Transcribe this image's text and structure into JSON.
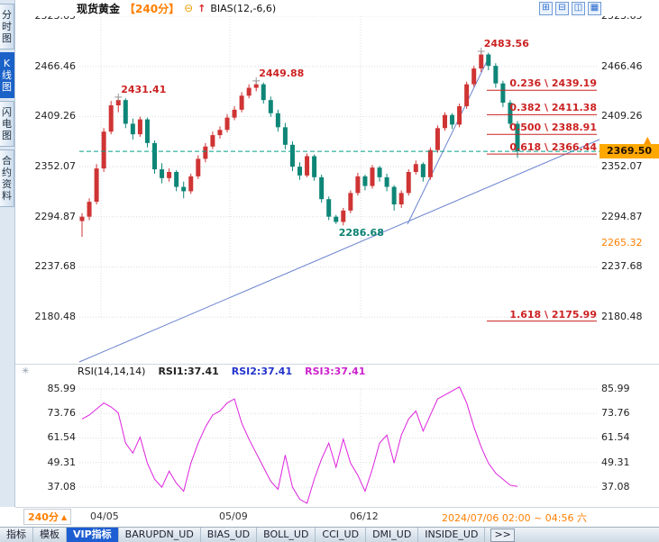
{
  "colors": {
    "up": "#cf3434",
    "down": "#0e8677",
    "rsi_line": "#dd22dd",
    "fib": "#cc2222",
    "trend": "#6b83cf",
    "teal": "#00a088",
    "accent_orange": "#ff7f00",
    "price_box_bg": "#ffa800",
    "active_tab_bg": "#1d5ed2",
    "grid": "#d8dde2"
  },
  "sidebar": {
    "tabs": [
      {
        "label": "分时图",
        "active": false
      },
      {
        "label": "K线图",
        "active": true
      },
      {
        "label": "闪电图",
        "active": false
      },
      {
        "label": "合约资料",
        "active": false
      }
    ]
  },
  "header": {
    "symbol": "现货黄金",
    "period": "【240分】",
    "minus_icon": "⊖",
    "up_arrow_icon": "↑",
    "indicator_label": "BIAS(12,-6,6)",
    "toolbar_icons": [
      {
        "name": "layout-grid-4-icon",
        "glyph": "⊞"
      },
      {
        "name": "layout-vertical-split-icon",
        "glyph": "⊟"
      },
      {
        "name": "layout-horizontal-split-icon",
        "glyph": "◫"
      },
      {
        "name": "layout-grid-9-icon",
        "glyph": "▦"
      }
    ]
  },
  "main_chart": {
    "y_labels_left": [
      "2523.65",
      "2466.46",
      "2409.26",
      "2352.07",
      "2294.87",
      "2237.68",
      "2180.48"
    ],
    "y_labels_right": [
      {
        "text": "2523.65"
      },
      {
        "text": "2466.46"
      },
      {
        "text": "2409.26"
      },
      {
        "text": "2352.07"
      },
      {
        "text": "2294.87"
      },
      {
        "text": "2265.32",
        "accent": true
      },
      {
        "text": "2237.68"
      },
      {
        "text": "2180.48"
      }
    ],
    "current_price": "2369.50",
    "price_marker": "▲",
    "fib_levels": [
      {
        "label": "0.236 \\ 2439.19",
        "price": 2439.19
      },
      {
        "label": "0.382 \\ 2411.38",
        "price": 2411.38
      },
      {
        "label": "0.500 \\ 2388.91",
        "price": 2388.91
      },
      {
        "label": "0.618 \\ 2366.44",
        "price": 2366.44
      },
      {
        "label": "1.618 \\ 2175.99",
        "price": 2175.99
      }
    ],
    "annotations": [
      {
        "text": "2431.41",
        "candle": 6,
        "kind": "peak"
      },
      {
        "text": "2449.88",
        "candle": 25,
        "kind": "peak"
      },
      {
        "text": "2483.56",
        "candle": 56,
        "kind": "peak"
      },
      {
        "text": "2286.68",
        "candle": 36,
        "kind": "trough"
      }
    ],
    "trend_lines": [
      [
        88,
        402,
        665,
        155
      ],
      [
        452,
        249,
        543,
        62
      ]
    ]
  },
  "rsi_panel": {
    "settings_icon": "✳",
    "title": "RSI(14,14,14)",
    "values": [
      {
        "label": "RSI1:37.41",
        "color": "#222222"
      },
      {
        "label": "RSI2:37.41",
        "color": "#2233cc"
      },
      {
        "label": "RSI3:37.41",
        "color": "#cc22cc"
      }
    ],
    "y_labels": [
      "85.99",
      "73.76",
      "61.54",
      "49.31",
      "37.08"
    ]
  },
  "time_axis": {
    "period_label": "240分",
    "period_arrow": "▲",
    "dates": [
      {
        "text": "04/05",
        "x": 100,
        "grid_x": 112
      },
      {
        "text": "05/09",
        "x": 243,
        "grid_x": 255
      },
      {
        "text": "06/12",
        "x": 388,
        "grid_x": 400
      }
    ],
    "range_text": "2024/07/06 02:00 ~ 04:56 六"
  },
  "bottom_tabs": [
    {
      "label": "指标"
    },
    {
      "label": "模板"
    },
    {
      "label": "VIP指标",
      "active": true
    },
    {
      "label": "BARUPDN_UD"
    },
    {
      "label": "BIAS_UD"
    },
    {
      "label": "BOLL_UD"
    },
    {
      "label": "CCI_UD"
    },
    {
      "label": "DMI_UD"
    },
    {
      "label": "INSIDE_UD"
    },
    {
      "label": ">>",
      "more": true
    }
  ],
  "chart_data": [
    {
      "type": "candlestick",
      "title": "现货黄金 240分",
      "ylim": [
        2180.48,
        2523.65
      ],
      "ohlc": [
        [
          2290,
          2299,
          2272,
          2295
        ],
        [
          2295,
          2316,
          2291,
          2312
        ],
        [
          2312,
          2355,
          2309,
          2350
        ],
        [
          2350,
          2396,
          2346,
          2392
        ],
        [
          2392,
          2427,
          2389,
          2422
        ],
        [
          2422,
          2431.4,
          2414,
          2428
        ],
        [
          2428,
          2430,
          2396,
          2401
        ],
        [
          2401,
          2407,
          2383,
          2389
        ],
        [
          2389,
          2409,
          2386,
          2406
        ],
        [
          2406,
          2408,
          2374,
          2379
        ],
        [
          2379,
          2382,
          2344,
          2349
        ],
        [
          2349,
          2356,
          2333,
          2339
        ],
        [
          2339,
          2350,
          2335,
          2346
        ],
        [
          2346,
          2348,
          2324,
          2329
        ],
        [
          2329,
          2335,
          2316,
          2324
        ],
        [
          2324,
          2344,
          2321,
          2341
        ],
        [
          2341,
          2365,
          2338,
          2361
        ],
        [
          2361,
          2379,
          2357,
          2375
        ],
        [
          2375,
          2392,
          2372,
          2388
        ],
        [
          2388,
          2398,
          2384,
          2394
        ],
        [
          2394,
          2412,
          2391,
          2408
        ],
        [
          2408,
          2421,
          2405,
          2417
        ],
        [
          2417,
          2437,
          2414,
          2433
        ],
        [
          2433,
          2446,
          2430,
          2442
        ],
        [
          2442,
          2449.9,
          2438,
          2446
        ],
        [
          2446,
          2448,
          2424,
          2428
        ],
        [
          2428,
          2432,
          2409,
          2413
        ],
        [
          2413,
          2417,
          2392,
          2397
        ],
        [
          2397,
          2402,
          2372,
          2377
        ],
        [
          2377,
          2381,
          2347,
          2352
        ],
        [
          2352,
          2357,
          2337,
          2342
        ],
        [
          2342,
          2367,
          2340,
          2364
        ],
        [
          2364,
          2366,
          2336,
          2340
        ],
        [
          2340,
          2343,
          2311,
          2315
        ],
        [
          2315,
          2318,
          2291,
          2295
        ],
        [
          2295,
          2297,
          2286.7,
          2289
        ],
        [
          2289,
          2305,
          2285,
          2302
        ],
        [
          2302,
          2325,
          2299,
          2322
        ],
        [
          2322,
          2345,
          2319,
          2341
        ],
        [
          2341,
          2343,
          2325,
          2330
        ],
        [
          2330,
          2354,
          2327,
          2351
        ],
        [
          2351,
          2353,
          2335,
          2340
        ],
        [
          2340,
          2344,
          2324,
          2329
        ],
        [
          2329,
          2331,
          2302,
          2309
        ],
        [
          2309,
          2325,
          2305,
          2322
        ],
        [
          2322,
          2349,
          2319,
          2346
        ],
        [
          2346,
          2359,
          2343,
          2355
        ],
        [
          2355,
          2357,
          2335,
          2340
        ],
        [
          2340,
          2374,
          2337,
          2371
        ],
        [
          2371,
          2399,
          2368,
          2396
        ],
        [
          2396,
          2414,
          2393,
          2411
        ],
        [
          2411,
          2413,
          2395,
          2400
        ],
        [
          2400,
          2424,
          2397,
          2421
        ],
        [
          2421,
          2449,
          2418,
          2446
        ],
        [
          2446,
          2467,
          2443,
          2464
        ],
        [
          2464,
          2483.6,
          2460,
          2480
        ],
        [
          2480,
          2482,
          2462,
          2467
        ],
        [
          2467,
          2470,
          2442,
          2447
        ],
        [
          2447,
          2450,
          2420,
          2425
        ],
        [
          2425,
          2428,
          2396,
          2401
        ],
        [
          2401,
          2404,
          2362,
          2369.5
        ]
      ]
    },
    {
      "type": "line",
      "name": "RSI(14,14,14)",
      "ylim": [
        25,
        90
      ],
      "legend_position": "top",
      "values": [
        71,
        73,
        76,
        79,
        77,
        74,
        59,
        54,
        62,
        49,
        41,
        37,
        45,
        39,
        35,
        49,
        59,
        67,
        73,
        75,
        79,
        81,
        69,
        61,
        54,
        47,
        40,
        36,
        53,
        37,
        31,
        29,
        41,
        51,
        59,
        47,
        61,
        49,
        43,
        35,
        46,
        59,
        63,
        49,
        63,
        71,
        75,
        65,
        73,
        81,
        83,
        85,
        87,
        79,
        67,
        57,
        49,
        44,
        41,
        38,
        37.41
      ]
    }
  ]
}
